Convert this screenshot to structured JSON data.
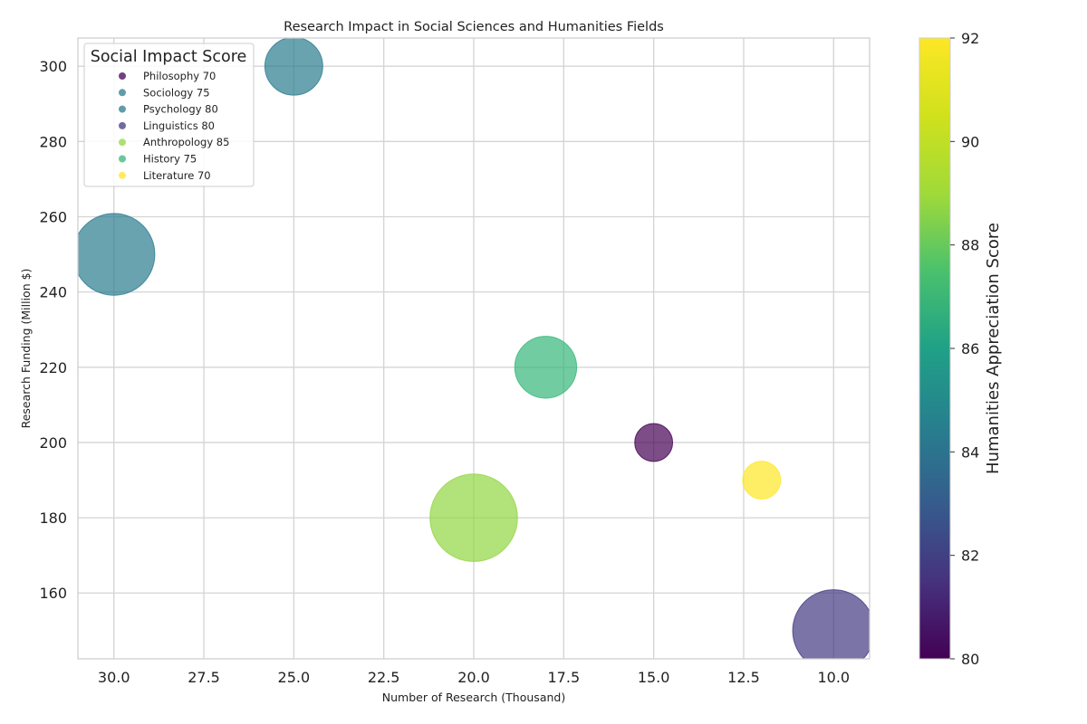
{
  "chart_data": {
    "type": "scatter",
    "title": "Research Impact in Social Sciences and Humanities Fields",
    "xlabel": "Number of Research (Thousand)",
    "ylabel": "Research Funding (Million $)",
    "xlim": [
      31,
      9
    ],
    "ylim": [
      142.5,
      307.5
    ],
    "x_inverted": true,
    "xticks": [
      30.0,
      27.5,
      25.0,
      22.5,
      20.0,
      17.5,
      15.0,
      12.5,
      10.0
    ],
    "xtick_labels": [
      "30.0",
      "27.5",
      "25.0",
      "22.5",
      "20.0",
      "17.5",
      "15.0",
      "12.5",
      "10.0"
    ],
    "yticks": [
      160,
      180,
      200,
      220,
      240,
      260,
      280,
      300
    ],
    "ytick_labels": [
      "160",
      "180",
      "200",
      "220",
      "240",
      "260",
      "280",
      "300"
    ],
    "grid": true,
    "colorbar": {
      "label": "Humanities Appreciation Score",
      "range": [
        80,
        92
      ],
      "colormap": "viridis",
      "ticks": [
        80,
        82,
        84,
        86,
        88,
        90,
        92
      ],
      "tick_labels": [
        "80",
        "82",
        "84",
        "86",
        "88",
        "90",
        "92"
      ]
    },
    "legend": {
      "title": "Social Impact Score",
      "placement": "top-left",
      "entries": [
        "Philosophy 70",
        "Sociology 75",
        "Psychology 80",
        "Linguistics 80",
        "Anthropology 85",
        "History 75",
        "Literature 70"
      ]
    },
    "points": [
      {
        "field": "Philosophy",
        "x": 15,
        "y": 200,
        "humanities_appreciation": 80,
        "social_impact": 70,
        "size": 15
      },
      {
        "field": "Sociology",
        "x": 25,
        "y": 300,
        "humanities_appreciation": 85,
        "social_impact": 75,
        "size": 35
      },
      {
        "field": "Psychology",
        "x": 30,
        "y": 250,
        "humanities_appreciation": 85,
        "social_impact": 80,
        "size": 70
      },
      {
        "field": "Linguistics",
        "x": 10,
        "y": 150,
        "humanities_appreciation": 82,
        "social_impact": 80,
        "size": 70
      },
      {
        "field": "Anthropology",
        "x": 20,
        "y": 180,
        "humanities_appreciation": 90,
        "social_impact": 85,
        "size": 80
      },
      {
        "field": "History",
        "x": 18,
        "y": 220,
        "humanities_appreciation": 88,
        "social_impact": 75,
        "size": 40
      },
      {
        "field": "Literature",
        "x": 12,
        "y": 190,
        "humanities_appreciation": 92,
        "social_impact": 70,
        "size": 15
      }
    ]
  }
}
